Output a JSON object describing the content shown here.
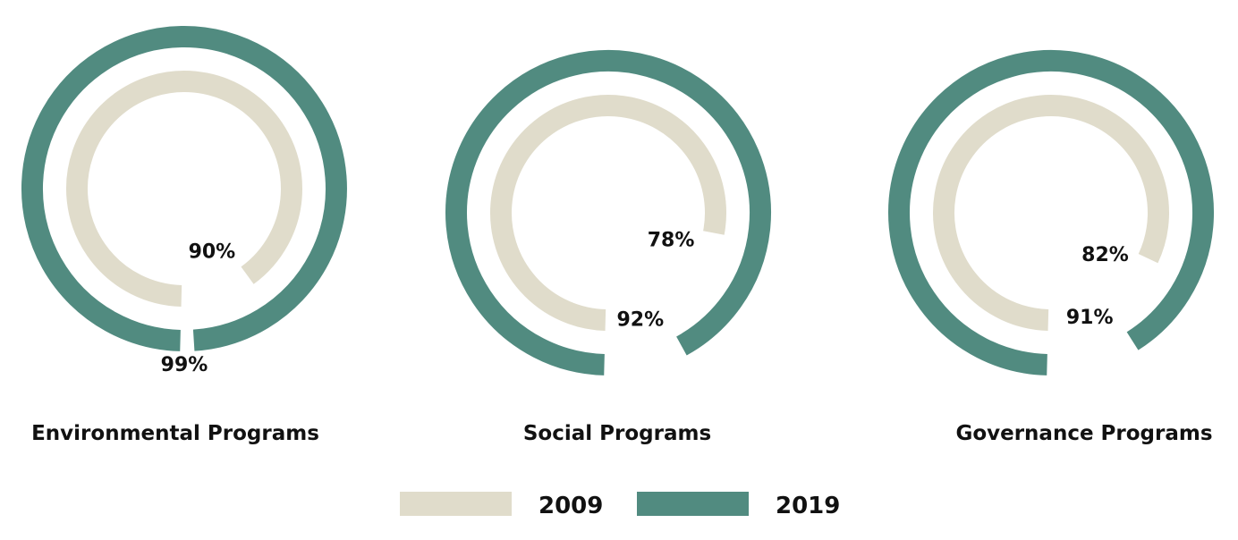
{
  "chart_data": {
    "type": "radial-bar",
    "unit": "%",
    "value_max": 100,
    "series": [
      {
        "name": "2009",
        "color": "#e0dccb"
      },
      {
        "name": "2019",
        "color": "#518b80"
      }
    ],
    "groups": [
      {
        "title": "Environmental Programs",
        "values": {
          "2009": 90,
          "2019": 99
        },
        "labels": {
          "2009": "90%",
          "2019": "99%"
        }
      },
      {
        "title": "Social Programs",
        "values": {
          "2009": 78,
          "2019": 92
        },
        "labels": {
          "2009": "78%",
          "2019": "92%"
        }
      },
      {
        "title": "Governance Programs",
        "values": {
          "2009": 82,
          "2019": 91
        },
        "labels": {
          "2009": "82%",
          "2019": "91%"
        }
      }
    ],
    "legend": {
      "position": "bottom-center",
      "items": [
        {
          "label": "2009",
          "color": "#e0dccb"
        },
        {
          "label": "2019",
          "color": "#518b80"
        }
      ]
    }
  }
}
